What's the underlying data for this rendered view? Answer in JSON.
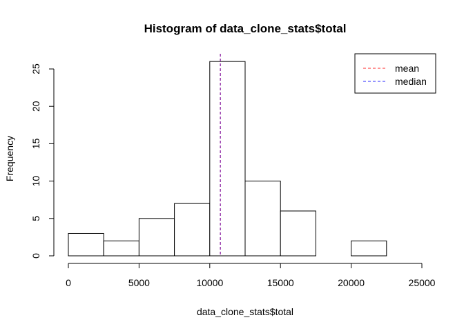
{
  "chart_data": {
    "type": "bar",
    "title": "Histogram of data_clone_stats$total",
    "xlabel": "data_clone_stats$total",
    "ylabel": "Frequency",
    "bins": [
      {
        "x0": 0,
        "x1": 2500,
        "count": 3
      },
      {
        "x0": 2500,
        "x1": 5000,
        "count": 2
      },
      {
        "x0": 5000,
        "x1": 7500,
        "count": 5
      },
      {
        "x0": 7500,
        "x1": 10000,
        "count": 7
      },
      {
        "x0": 10000,
        "x1": 12500,
        "count": 26
      },
      {
        "x0": 12500,
        "x1": 15000,
        "count": 10
      },
      {
        "x0": 15000,
        "x1": 17500,
        "count": 6
      },
      {
        "x0": 17500,
        "x1": 20000,
        "count": 0
      },
      {
        "x0": 20000,
        "x1": 22500,
        "count": 2
      },
      {
        "x0": 22500,
        "x1": 25000,
        "count": 0
      }
    ],
    "xlim": [
      0,
      25000
    ],
    "ylim": [
      0,
      25
    ],
    "xticks": [
      0,
      5000,
      10000,
      15000,
      20000,
      25000
    ],
    "yticks": [
      0,
      5,
      10,
      15,
      20,
      25
    ],
    "reference_lines": [
      {
        "name": "mean",
        "value": 10750,
        "color": "#ff5555",
        "style": "dashed"
      },
      {
        "name": "median",
        "value": 10750,
        "color": "#5555ff",
        "style": "dashed"
      }
    ],
    "overlap_line_color": "#8a1fa0",
    "legend_placement": "top-right",
    "grid": false
  }
}
